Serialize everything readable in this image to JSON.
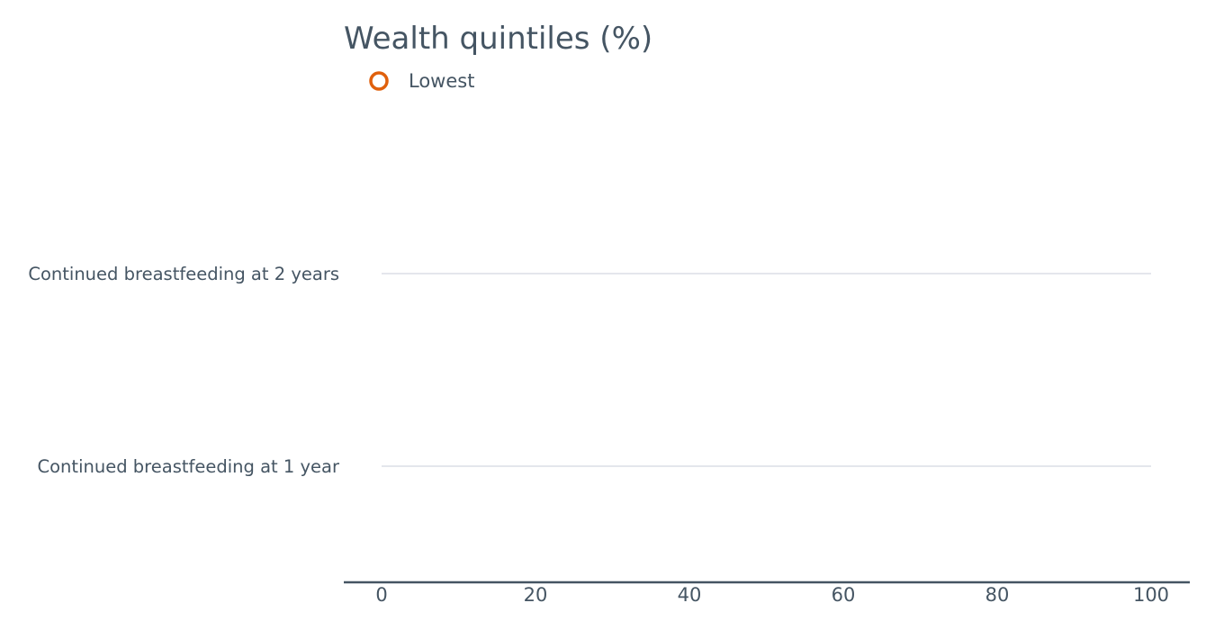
{
  "chart_data": {
    "type": "scatter",
    "title": "Wealth quintiles (%)",
    "categories": [
      "Continued breastfeeding at 2 years",
      "Continued breastfeeding at 1 year"
    ],
    "series": [
      {
        "name": "Lowest",
        "color": "#e0600c",
        "marker": "hollow-circle",
        "values": [
          null,
          null
        ]
      }
    ],
    "xlim": [
      0,
      100
    ],
    "xticks": [
      0,
      20,
      40,
      60,
      80,
      100
    ],
    "grid": false,
    "legend_position": "top-left"
  }
}
